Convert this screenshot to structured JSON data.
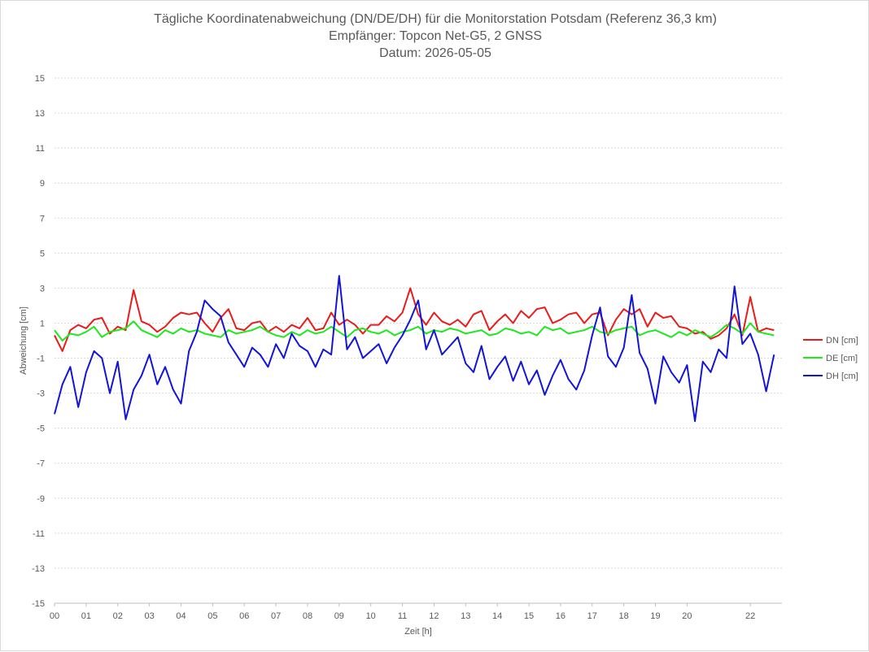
{
  "chart_data": {
    "type": "line",
    "title": "Tägliche Koordinatenabweichung (DN/DE/DH) für die Monitorstation Potsdam (Referenz 36,3 km)",
    "subtitle": "Empfänger: Topcon Net-G5, 2 GNSS",
    "date_label": "Datum: 2026-05-05",
    "xlabel": "Zeit [h]",
    "ylabel": "Abweichung [cm]",
    "xlim": [
      0,
      23
    ],
    "ylim": [
      -15,
      15
    ],
    "x_ticks": [
      "00",
      "01",
      "02",
      "03",
      "04",
      "05",
      "06",
      "07",
      "08",
      "09",
      "10",
      "11",
      "12",
      "13",
      "14",
      "15",
      "16",
      "17",
      "18",
      "19",
      "20",
      "22"
    ],
    "y_ticks": [
      15,
      13,
      11,
      9,
      7,
      5,
      3,
      1,
      -1,
      -3,
      -5,
      -7,
      -9,
      -11,
      -13,
      -15
    ],
    "grid": true,
    "legend_position": "right",
    "x": [
      0,
      0.25,
      0.5,
      0.75,
      1,
      1.25,
      1.5,
      1.75,
      2,
      2.25,
      2.5,
      2.75,
      3,
      3.25,
      3.5,
      3.75,
      4,
      4.25,
      4.5,
      4.75,
      5,
      5.25,
      5.5,
      5.75,
      6,
      6.25,
      6.5,
      6.75,
      7,
      7.25,
      7.5,
      7.75,
      8,
      8.25,
      8.5,
      8.75,
      9,
      9.25,
      9.5,
      9.75,
      10,
      10.25,
      10.5,
      10.75,
      11,
      11.25,
      11.5,
      11.75,
      12,
      12.25,
      12.5,
      12.75,
      13,
      13.25,
      13.5,
      13.75,
      14,
      14.25,
      14.5,
      14.75,
      15,
      15.25,
      15.5,
      15.75,
      16,
      16.25,
      16.5,
      16.75,
      17,
      17.25,
      17.5,
      17.75,
      18,
      18.25,
      18.5,
      18.75,
      19,
      19.25,
      19.5,
      19.75,
      20,
      20.25,
      20.5,
      20.75,
      21,
      21.25,
      21.5,
      21.75,
      22,
      22.25,
      22.5,
      22.75
    ],
    "series": [
      {
        "name": "DN [cm]",
        "color": "#e81c1c",
        "values": [
          0.3,
          -0.6,
          0.6,
          0.9,
          0.7,
          1.2,
          1.3,
          0.4,
          0.8,
          0.6,
          2.9,
          1.1,
          0.9,
          0.5,
          0.8,
          1.3,
          1.6,
          1.5,
          1.6,
          1.0,
          0.5,
          1.3,
          1.8,
          0.7,
          0.6,
          1.0,
          1.1,
          0.5,
          0.8,
          0.5,
          0.9,
          0.7,
          1.3,
          0.6,
          0.7,
          1.6,
          0.9,
          1.2,
          0.9,
          0.4,
          0.9,
          0.9,
          1.4,
          1.1,
          1.6,
          3.0,
          1.5,
          0.9,
          1.6,
          1.1,
          0.9,
          1.2,
          0.8,
          1.5,
          1.7,
          0.6,
          1.1,
          1.5,
          1.0,
          1.7,
          1.3,
          1.8,
          1.9,
          1.0,
          1.2,
          1.5,
          1.6,
          1.0,
          1.5,
          1.6,
          0.3,
          1.2,
          1.8,
          1.5,
          1.8,
          0.8,
          1.6,
          1.3,
          1.4,
          0.8,
          0.7,
          0.4,
          0.5,
          0.1,
          0.3,
          0.7,
          1.5,
          0.3,
          2.5,
          0.5,
          0.7,
          0.6
        ]
      },
      {
        "name": "DE [cm]",
        "color": "#1ee81e",
        "values": [
          0.6,
          0.0,
          0.4,
          0.3,
          0.5,
          0.8,
          0.2,
          0.5,
          0.6,
          0.7,
          1.1,
          0.6,
          0.4,
          0.2,
          0.6,
          0.4,
          0.7,
          0.5,
          0.6,
          0.4,
          0.3,
          0.2,
          0.6,
          0.4,
          0.5,
          0.6,
          0.8,
          0.5,
          0.3,
          0.2,
          0.5,
          0.3,
          0.6,
          0.4,
          0.5,
          0.8,
          0.5,
          0.2,
          0.6,
          0.7,
          0.5,
          0.4,
          0.6,
          0.3,
          0.5,
          0.6,
          0.8,
          0.4,
          0.6,
          0.5,
          0.7,
          0.6,
          0.4,
          0.5,
          0.6,
          0.3,
          0.4,
          0.7,
          0.6,
          0.4,
          0.5,
          0.3,
          0.8,
          0.6,
          0.7,
          0.4,
          0.5,
          0.6,
          0.8,
          0.5,
          0.4,
          0.6,
          0.7,
          0.8,
          0.3,
          0.5,
          0.6,
          0.4,
          0.2,
          0.5,
          0.3,
          0.6,
          0.4,
          0.2,
          0.5,
          0.9,
          0.7,
          0.4,
          1.0,
          0.5,
          0.4,
          0.3
        ]
      },
      {
        "name": "DH [cm]",
        "color": "#1414d8",
        "values": [
          -4.2,
          -2.5,
          -1.5,
          -3.8,
          -1.8,
          -0.6,
          -1.0,
          -3.0,
          -1.2,
          -4.5,
          -2.8,
          -2.0,
          -0.8,
          -2.5,
          -1.5,
          -2.8,
          -3.6,
          -0.6,
          0.5,
          2.3,
          1.8,
          1.4,
          -0.1,
          -0.8,
          -1.5,
          -0.4,
          -0.8,
          -1.5,
          -0.2,
          -1.0,
          0.4,
          -0.3,
          -0.6,
          -1.5,
          -0.5,
          -0.8,
          3.7,
          -0.5,
          0.2,
          -1.0,
          -0.6,
          -0.2,
          -1.3,
          -0.4,
          0.3,
          1.2,
          2.3,
          -0.5,
          0.6,
          -0.8,
          -0.3,
          0.2,
          -1.3,
          -1.8,
          -0.3,
          -2.2,
          -1.5,
          -0.9,
          -2.3,
          -1.2,
          -2.5,
          -1.7,
          -3.1,
          -2.0,
          -1.1,
          -2.2,
          -2.8,
          -1.7,
          0.3,
          1.9,
          -0.9,
          -1.5,
          -0.4,
          2.6,
          -0.7,
          -1.6,
          -3.6,
          -0.9,
          -1.8,
          -2.4,
          -1.4,
          -4.6,
          -1.2,
          -1.8,
          -0.5,
          -1.0,
          3.1,
          -0.2,
          0.4,
          -0.8,
          -2.9,
          -0.8
        ]
      }
    ]
  }
}
